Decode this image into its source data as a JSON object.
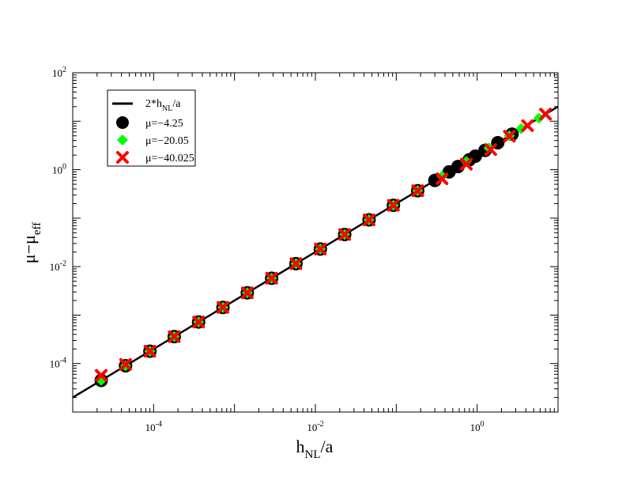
{
  "chart_data": {
    "type": "scatter",
    "title": "",
    "xscale": "log",
    "yscale": "log",
    "xlim": [
      1e-05,
      10
    ],
    "ylim": [
      1e-05,
      100
    ],
    "x_ticks": [
      {
        "value": 0.0001,
        "base": "10",
        "exp": "-4"
      },
      {
        "value": 0.01,
        "base": "10",
        "exp": "-2"
      },
      {
        "value": 1,
        "base": "10",
        "exp": "0"
      }
    ],
    "y_ticks": [
      {
        "value": 0.0001,
        "base": "10",
        "exp": "-4"
      },
      {
        "value": 0.01,
        "base": "10",
        "exp": "-2"
      },
      {
        "value": 1,
        "base": "10",
        "exp": "0"
      },
      {
        "value": 100,
        "base": "10",
        "exp": "2"
      }
    ],
    "xlabel": {
      "main": "h",
      "sub": "NL",
      "tail": "/a"
    },
    "ylabel": {
      "main": "μ−μ",
      "sub": "eff"
    },
    "line": {
      "name": "2*h_NL/a",
      "slope": 2,
      "color": "#000000"
    },
    "series": [
      {
        "name": "μ=−4.25",
        "marker": "circle",
        "color": "#000000",
        "x": [
          2.25e-05,
          4.5e-05,
          9e-05,
          0.00018,
          0.00036,
          0.00072,
          0.00144,
          0.00288,
          0.00576,
          0.01152,
          0.02304,
          0.04608,
          0.09216,
          0.184,
          0.3,
          0.45,
          0.58,
          0.8,
          0.95,
          1.25,
          1.8,
          2.7
        ],
        "y": [
          4.5e-05,
          9e-05,
          0.00018,
          0.00036,
          0.00072,
          0.00144,
          0.00288,
          0.00576,
          0.01152,
          0.02304,
          0.04608,
          0.09216,
          0.18432,
          0.368,
          0.6,
          0.9,
          1.16,
          1.6,
          1.9,
          2.5,
          3.6,
          5.4
        ]
      },
      {
        "name": "μ=−20.05",
        "marker": "diamond",
        "color": "#00ff00",
        "x": [
          2.25e-05,
          4.5e-05,
          9e-05,
          0.00018,
          0.00036,
          0.00072,
          0.00144,
          0.00288,
          0.00576,
          0.01152,
          0.02304,
          0.04608,
          0.09216,
          0.184,
          0.368,
          0.736,
          1.4,
          2.5,
          3.5,
          5.8
        ],
        "y": [
          4.5e-05,
          9e-05,
          0.00018,
          0.00036,
          0.00072,
          0.00144,
          0.00288,
          0.00576,
          0.01152,
          0.02304,
          0.04608,
          0.09216,
          0.18432,
          0.368,
          0.736,
          1.472,
          2.8,
          5.0,
          7.0,
          11.6
        ]
      },
      {
        "name": "μ=−40.025",
        "marker": "x",
        "color": "#ff0000",
        "x": [
          2.25e-05,
          4.5e-05,
          9e-05,
          0.00018,
          0.00036,
          0.00072,
          0.00144,
          0.00288,
          0.00576,
          0.01152,
          0.02304,
          0.04608,
          0.09216,
          0.184,
          0.368,
          0.736,
          1.472,
          2.5,
          4.2,
          7.0
        ],
        "y": [
          5.7e-05,
          9.6e-05,
          0.00018,
          0.00036,
          0.00072,
          0.00144,
          0.00288,
          0.00576,
          0.01152,
          0.02304,
          0.04608,
          0.09216,
          0.18432,
          0.368,
          0.65,
          1.3,
          2.6,
          4.9,
          8.1,
          14
        ]
      }
    ],
    "legend": {
      "position": "top-left",
      "entries": [
        {
          "main": "2*h",
          "sub": "NL",
          "tail": "/a",
          "marker": "line",
          "color": "#000000"
        },
        {
          "main": "μ=−4.25",
          "marker": "circle",
          "color": "#000000"
        },
        {
          "main": "μ=−20.05",
          "marker": "diamond",
          "color": "#00ff00"
        },
        {
          "main": "μ=−40.025",
          "marker": "x",
          "color": "#ff0000"
        }
      ]
    }
  }
}
